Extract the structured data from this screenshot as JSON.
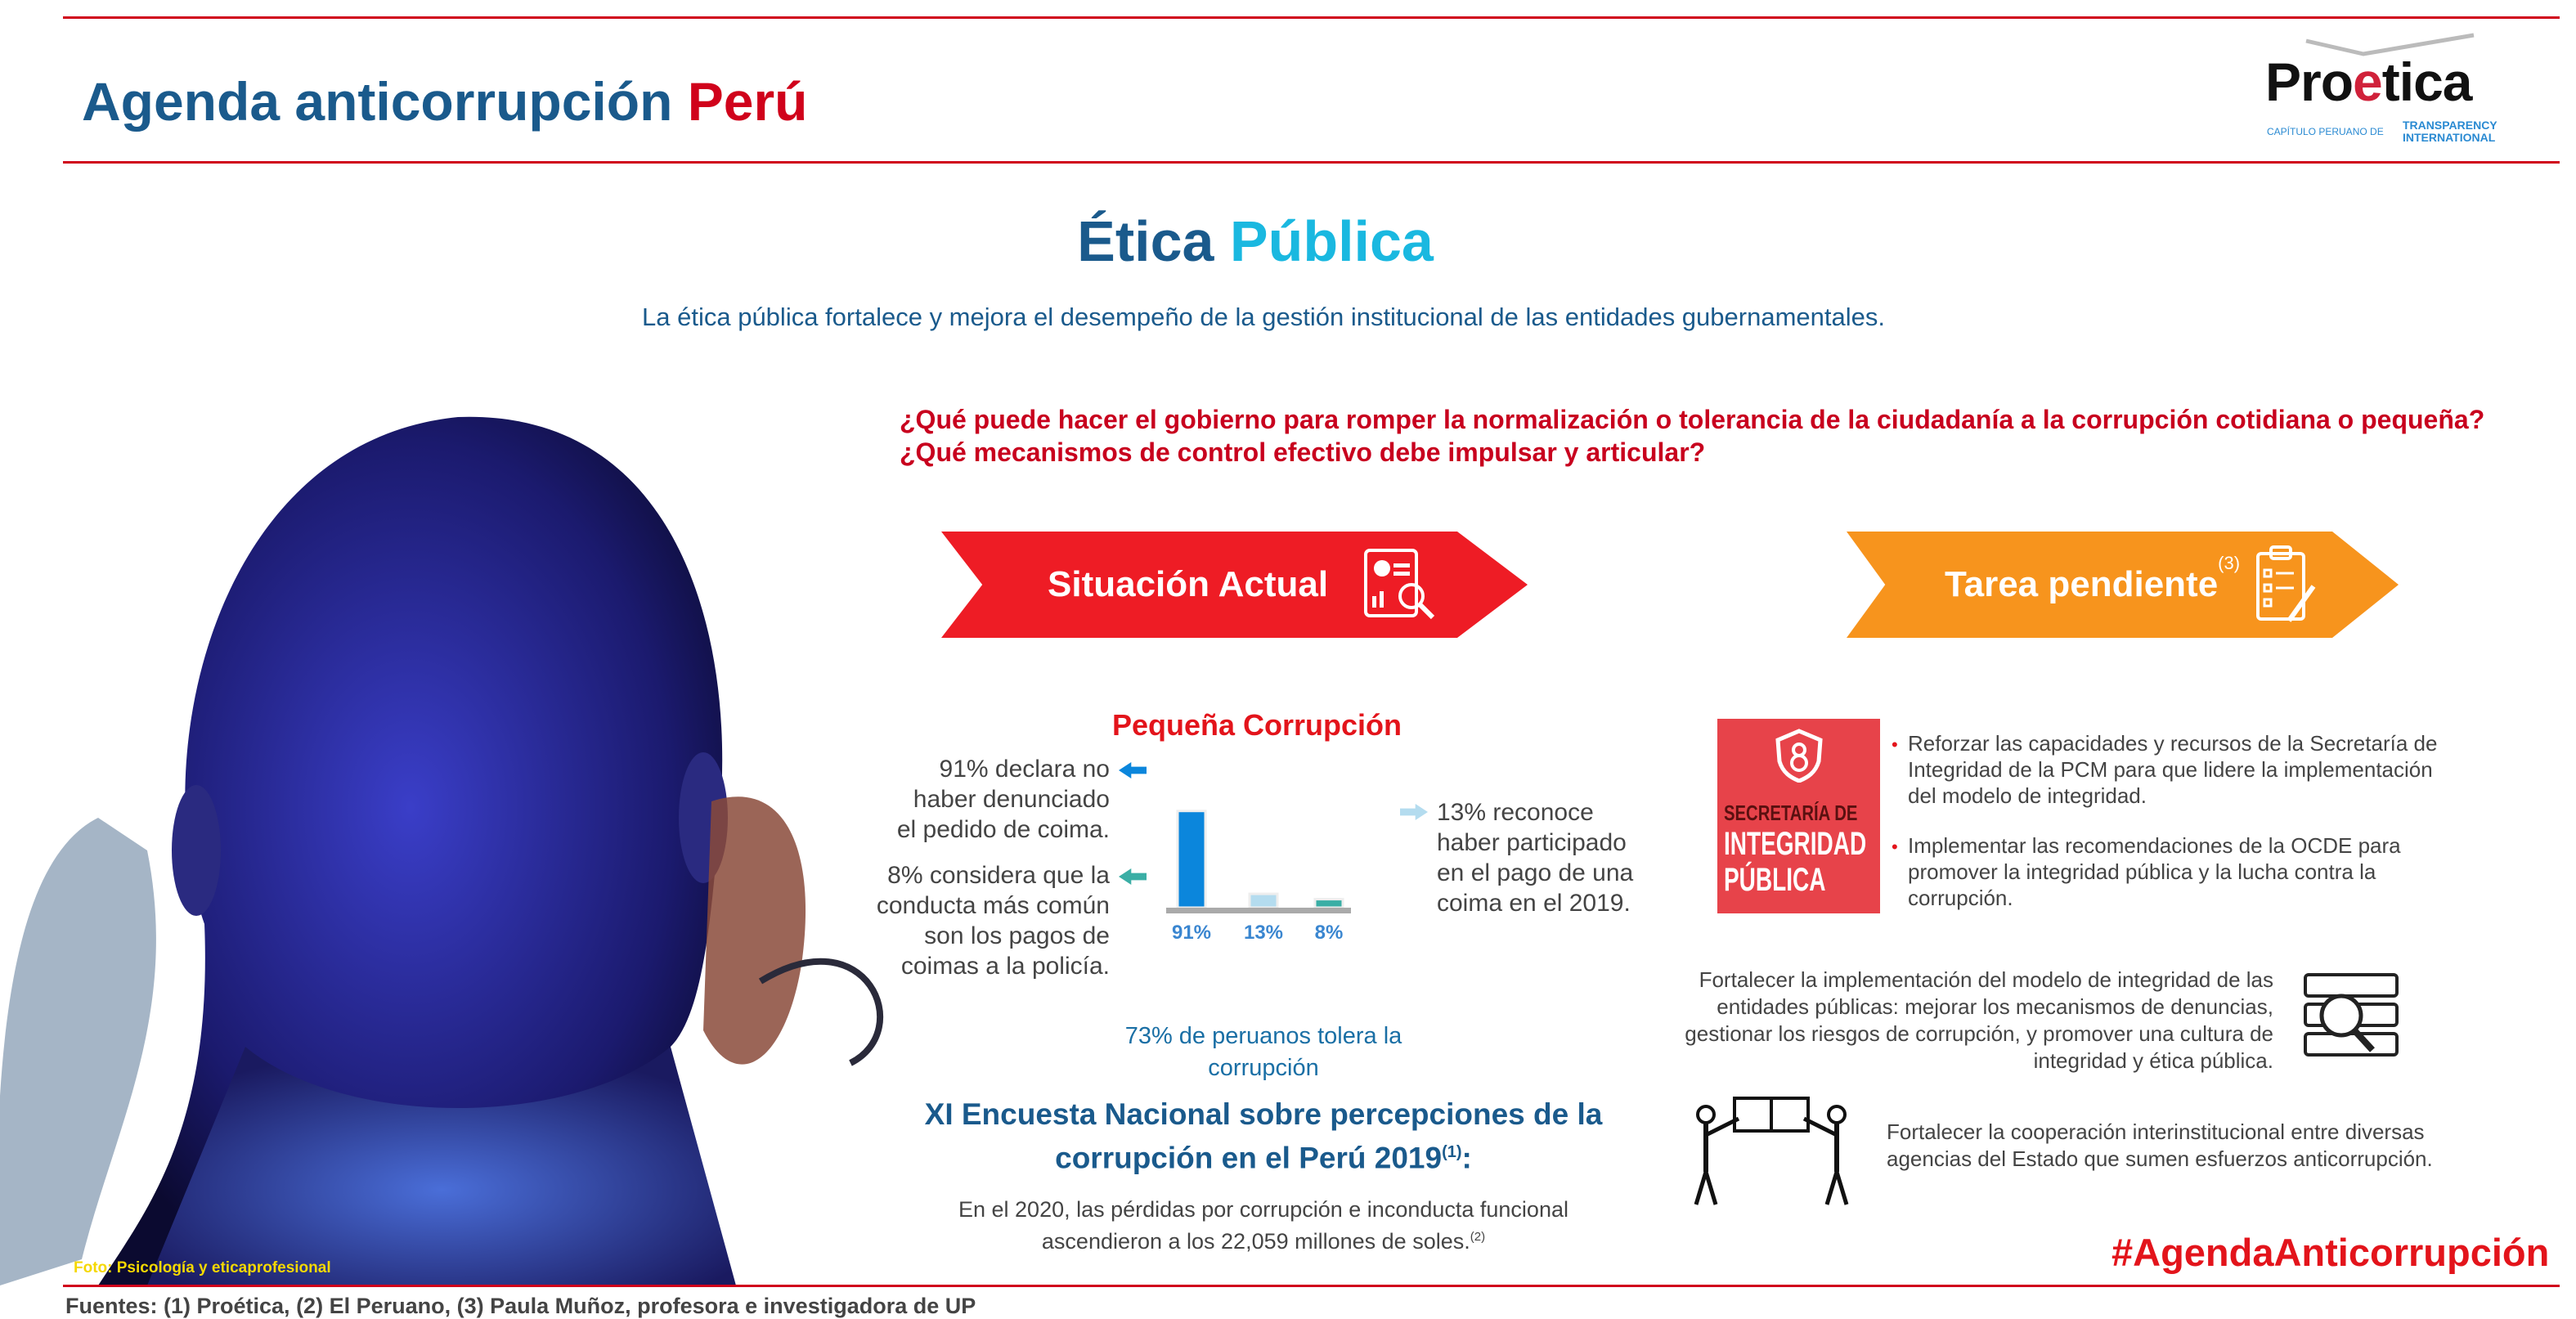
{
  "header": {
    "title_main": "Agenda anticorrupción",
    "title_accent": "Perú",
    "logo": {
      "word_a": "Pro",
      "word_e": "e",
      "word_b": "tica",
      "sub": "CAPÍTULO PERUANO DE",
      "ti_line1": "TRANSPARENCY",
      "ti_line2": "INTERNATIONAL"
    }
  },
  "section": {
    "title_a": "Ética",
    "title_b": "Pública",
    "subtitle": "La ética pública fortalece y mejora el desempeño de la gestión institucional de las entidades gubernamentales.",
    "question1": "¿Qué puede hacer el gobierno para romper la normalización o tolerancia de la ciudadanía a la corrupción cotidiana o pequeña?",
    "question2": "¿Qué mecanismos de control efectivo debe impulsar y articular?"
  },
  "banners": {
    "left": "Situación Actual",
    "right": "Tarea pendiente",
    "right_ref": "(3)"
  },
  "situacion": {
    "heading": "Pequeña Corrupción",
    "left1": [
      "91% declara no",
      "haber denunciado",
      "el pedido de coima."
    ],
    "left2": [
      "8% considera que la",
      "conducta más común",
      "son los pagos de",
      "coimas a la policía."
    ],
    "right": [
      "13% reconoce",
      "haber participado",
      "en el pago de una",
      "coima en el 2019."
    ],
    "tolera": [
      "73% de peruanos tolera la",
      "corrupción"
    ],
    "encuesta_l1": "XI Encuesta Nacional sobre percepciones de la",
    "encuesta_l2": "corrupción en el Perú 2019",
    "encuesta_ref": "(1)",
    "encuesta_colon": ":",
    "perdidas_l1": "En el 2020, las pérdidas por corrupción e inconducta funcional",
    "perdidas_l2": "ascendieron a los 22,059 millones de soles.",
    "perdidas_ref": "(2)"
  },
  "chart_data": {
    "type": "bar",
    "categories": [
      "91%",
      "13%",
      "8%"
    ],
    "values": [
      91,
      13,
      8
    ],
    "colors": [
      "#0b86dc",
      "#b4dcef",
      "#3aaea5"
    ],
    "ylim": [
      0,
      100
    ]
  },
  "tarea": {
    "sec_l1": "SECRETARÍA DE",
    "sec_l2": "INTEGRIDAD",
    "sec_l3": "PÚBLICA",
    "bullet1": "Reforzar las capacidades y recursos de la Secretaría de Integridad de la PCM para que lidere la implementación del modelo de integridad.",
    "bullet2": "Implementar las recomendaciones de la OCDE para promover la integridad pública y la lucha contra la corrupción.",
    "fortalecer1": "Fortalecer la implementación del modelo de integridad de las entidades públicas: mejorar los mecanismos de denuncias, gestionar los riesgos de corrupción, y promover una cultura de integridad y ética pública.",
    "fortalecer2": "Fortalecer la cooperación interinstitucional entre diversas agencias del Estado que sumen esfuerzos anticorrupción."
  },
  "footer": {
    "hashtag": "#AgendaAnticorrupción",
    "fuentes": "Fuentes: (1) Proética, (2) El Peruano, (3) Paula Muñoz, profesora e investigadora de UP",
    "foto": "Foto: Psicología y eticaprofesional"
  },
  "colors": {
    "red": "#d0021b",
    "blue": "#1a5a8c",
    "cyan": "#1ab8e0",
    "orange": "#f7941d"
  }
}
